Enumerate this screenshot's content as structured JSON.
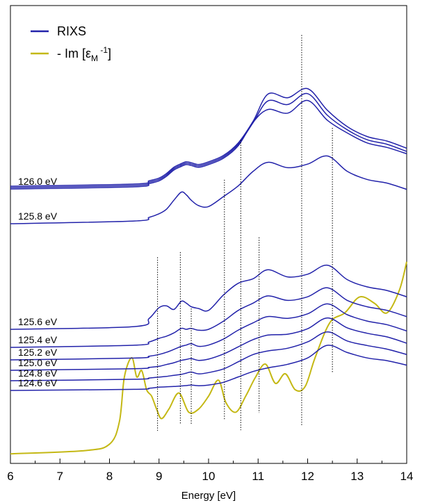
{
  "chart_data": {
    "type": "line",
    "xlabel": "Energy [eV]",
    "x_ticks": [
      "6",
      "7",
      "8",
      "9",
      "10",
      "11",
      "12",
      "13",
      "14"
    ],
    "xlim": [
      6,
      14
    ],
    "ylabel": "",
    "grid": false,
    "legend_position": "top-left",
    "legend": [
      {
        "label": "RIXS",
        "color": "#2222aa"
      },
      {
        "label_main": "- Im [ε",
        "label_sub": "M",
        "label_sup": "-1",
        "label_end": "]",
        "color": "#c4b814"
      }
    ],
    "rixs_color": "#2222aa",
    "eels_color": "#c4b814",
    "series": [
      {
        "label": "124.6 eV",
        "x": [
          6.0,
          8.5,
          8.8,
          9.0,
          9.15,
          9.3,
          9.45,
          9.55,
          9.65,
          9.8,
          10.0,
          10.3,
          10.6,
          10.9,
          11.2,
          11.6,
          12.0,
          12.4,
          12.8,
          13.2,
          13.6,
          14.0
        ],
        "y": [
          0.0,
          0.06,
          0.12,
          0.18,
          0.2,
          0.22,
          0.25,
          0.27,
          0.3,
          0.26,
          0.3,
          0.45,
          0.75,
          1.05,
          1.25,
          1.45,
          1.8,
          2.5,
          2.1,
          1.8,
          1.65,
          1.4
        ]
      },
      {
        "label": "124.8 eV",
        "x": [
          6.0,
          8.5,
          8.8,
          9.0,
          9.15,
          9.3,
          9.45,
          9.55,
          9.65,
          9.8,
          10.0,
          10.3,
          10.6,
          10.9,
          11.2,
          11.6,
          12.0,
          12.4,
          12.8,
          13.2,
          13.6,
          14.0
        ],
        "y": [
          0.0,
          0.08,
          0.15,
          0.2,
          0.24,
          0.3,
          0.35,
          0.42,
          0.48,
          0.38,
          0.45,
          0.65,
          1.05,
          1.45,
          1.65,
          1.8,
          2.15,
          2.7,
          2.2,
          1.95,
          1.75,
          1.45
        ]
      },
      {
        "label": "125.0 eV",
        "x": [
          6.0,
          8.5,
          8.8,
          9.0,
          9.15,
          9.3,
          9.45,
          9.55,
          9.65,
          9.8,
          10.0,
          10.3,
          10.6,
          10.9,
          11.2,
          11.6,
          12.0,
          12.4,
          12.8,
          13.2,
          13.6,
          14.0
        ],
        "y": [
          0.0,
          0.09,
          0.16,
          0.22,
          0.32,
          0.42,
          0.55,
          0.6,
          0.65,
          0.55,
          0.62,
          0.9,
          1.3,
          1.7,
          1.95,
          2.0,
          2.3,
          2.9,
          2.35,
          2.05,
          1.85,
          1.5
        ]
      },
      {
        "label": "125.2 eV",
        "x": [
          6.0,
          8.5,
          8.8,
          9.0,
          9.15,
          9.3,
          9.45,
          9.55,
          9.65,
          9.8,
          10.0,
          10.3,
          10.6,
          10.9,
          11.2,
          11.6,
          12.0,
          12.4,
          12.8,
          13.2,
          13.6,
          14.0
        ],
        "y": [
          0.0,
          0.1,
          0.2,
          0.3,
          0.42,
          0.58,
          0.75,
          0.82,
          0.9,
          0.75,
          0.82,
          1.15,
          1.65,
          2.05,
          2.4,
          2.3,
          2.55,
          3.1,
          2.5,
          2.15,
          1.95,
          1.6
        ]
      },
      {
        "label": "125.4 eV",
        "x": [
          6.0,
          8.5,
          8.8,
          9.0,
          9.15,
          9.3,
          9.45,
          9.55,
          9.65,
          9.8,
          10.0,
          10.3,
          10.6,
          10.9,
          11.2,
          11.6,
          12.0,
          12.4,
          12.8,
          13.2,
          13.6,
          14.0
        ],
        "y": [
          0.0,
          0.12,
          0.3,
          0.5,
          0.62,
          0.8,
          1.05,
          1.0,
          1.05,
          0.95,
          1.0,
          1.45,
          2.05,
          2.45,
          2.85,
          2.6,
          2.8,
          3.3,
          2.6,
          2.25,
          2.05,
          1.7
        ]
      },
      {
        "label": "125.6 eV",
        "x": [
          6.0,
          8.5,
          8.8,
          9.0,
          9.15,
          9.3,
          9.45,
          9.55,
          9.65,
          9.8,
          10.0,
          10.3,
          10.6,
          10.9,
          11.2,
          11.6,
          12.0,
          12.4,
          12.8,
          13.2,
          13.6,
          14.0
        ],
        "y": [
          0.0,
          0.15,
          0.6,
          1.2,
          1.3,
          1.1,
          1.55,
          1.45,
          1.25,
          1.15,
          1.05,
          1.9,
          2.55,
          2.8,
          3.3,
          2.9,
          3.05,
          3.55,
          2.75,
          2.35,
          2.15,
          1.8
        ]
      },
      {
        "label": "125.8 eV",
        "x": [
          6.0,
          8.5,
          8.8,
          9.0,
          9.15,
          9.3,
          9.45,
          9.55,
          9.65,
          9.8,
          10.0,
          10.3,
          10.6,
          10.9,
          11.2,
          11.6,
          12.0,
          12.4,
          12.8,
          13.2,
          13.6,
          14.0
        ],
        "y": [
          0.0,
          0.15,
          0.35,
          0.55,
          0.8,
          1.3,
          1.75,
          1.6,
          1.3,
          1.0,
          0.95,
          1.5,
          2.1,
          2.9,
          3.4,
          3.1,
          3.3,
          3.75,
          2.9,
          2.45,
          2.25,
          1.9
        ]
      },
      {
        "label": "126.0 eV",
        "x": [
          6.0,
          8.5,
          8.8,
          9.0,
          9.15,
          9.3,
          9.45,
          9.55,
          9.65,
          9.8,
          10.0,
          10.3,
          10.6,
          10.9,
          11.2,
          11.6,
          12.0,
          12.4,
          12.8,
          13.2,
          13.6,
          14.0
        ],
        "y": [
          0.0,
          0.12,
          0.3,
          0.45,
          0.7,
          1.05,
          1.25,
          1.35,
          1.3,
          1.2,
          1.35,
          1.7,
          2.4,
          3.7,
          4.4,
          4.2,
          4.9,
          3.8,
          3.1,
          2.55,
          2.3,
          1.95
        ]
      },
      {
        "label": "",
        "x": [
          6.0,
          8.5,
          8.8,
          9.0,
          9.15,
          9.3,
          9.45,
          9.55,
          9.65,
          9.8,
          10.0,
          10.3,
          10.6,
          10.9,
          11.2,
          11.6,
          12.0,
          12.4,
          12.8,
          13.2,
          13.6,
          14.0
        ],
        "y": [
          0.0,
          0.12,
          0.3,
          0.45,
          0.7,
          1.05,
          1.25,
          1.35,
          1.3,
          1.2,
          1.35,
          1.7,
          2.4,
          3.6,
          4.8,
          4.6,
          5.2,
          4.0,
          3.2,
          2.65,
          2.4,
          2.0
        ]
      },
      {
        "label": "",
        "x": [
          6.0,
          8.5,
          8.8,
          9.0,
          9.15,
          9.3,
          9.45,
          9.55,
          9.65,
          9.8,
          10.0,
          10.3,
          10.6,
          10.9,
          11.2,
          11.6,
          12.0,
          12.4,
          12.8,
          13.2,
          13.6,
          14.0
        ],
        "y": [
          0.0,
          0.12,
          0.3,
          0.45,
          0.7,
          1.05,
          1.25,
          1.35,
          1.3,
          1.2,
          1.35,
          1.7,
          2.4,
          3.6,
          5.1,
          4.9,
          5.4,
          4.2,
          3.3,
          2.75,
          2.5,
          2.1
        ]
      }
    ],
    "eels": {
      "x": [
        6.0,
        7.5,
        8.0,
        8.2,
        8.3,
        8.45,
        8.55,
        8.65,
        8.75,
        8.85,
        8.95,
        9.05,
        9.2,
        9.4,
        9.6,
        9.8,
        10.0,
        10.2,
        10.35,
        10.55,
        10.75,
        10.95,
        11.15,
        11.35,
        11.55,
        11.75,
        11.95,
        12.15,
        12.45,
        12.75,
        13.05,
        13.35,
        13.6,
        13.85,
        14.0
      ],
      "y": [
        0.0,
        0.05,
        0.15,
        0.5,
        1.2,
        1.5,
        1.2,
        1.3,
        1.0,
        0.9,
        0.7,
        0.55,
        0.7,
        0.95,
        0.65,
        0.7,
        0.9,
        1.15,
        0.8,
        0.65,
        0.9,
        1.2,
        1.4,
        1.1,
        1.25,
        1.0,
        1.05,
        1.5,
        2.05,
        2.2,
        2.45,
        2.35,
        2.2,
        2.55,
        3.0
      ]
    },
    "markers": [
      {
        "x": 8.97,
        "y_top": 3.07,
        "y_bottom": 0.36
      },
      {
        "x": 9.43,
        "y_top": 3.15,
        "y_bottom": 0.46
      },
      {
        "x": 9.65,
        "y_top": 2.27,
        "y_bottom": 0.46
      },
      {
        "x": 10.32,
        "y_top": 4.28,
        "y_bottom": 0.52
      },
      {
        "x": 10.65,
        "y_top": 4.9,
        "y_bottom": 0.37
      },
      {
        "x": 11.02,
        "y_top": 3.38,
        "y_bottom": 0.64
      },
      {
        "x": 11.88,
        "y_top": 6.54,
        "y_bottom": 0.44
      },
      {
        "x": 12.5,
        "y_top": 5.09,
        "y_bottom": 1.27
      }
    ]
  }
}
